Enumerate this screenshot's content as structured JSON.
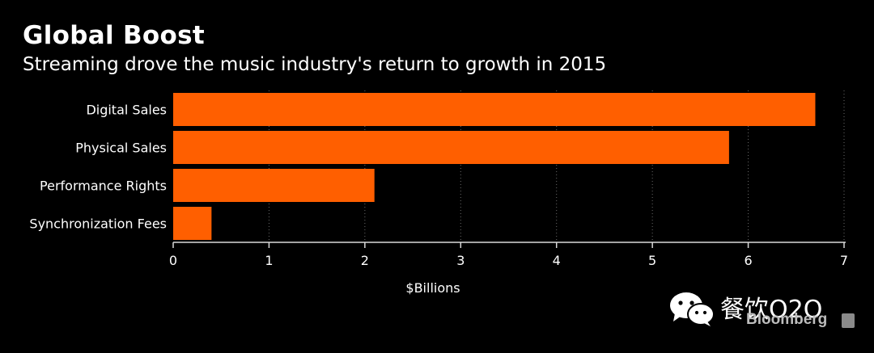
{
  "chart_data": {
    "type": "bar",
    "orientation": "horizontal",
    "title": "Global Boost",
    "subtitle": "Streaming drove the music industry's return to growth in 2015",
    "categories": [
      "Digital Sales",
      "Physical Sales",
      "Performance Rights",
      "Synchronization Fees"
    ],
    "values": [
      6.7,
      5.8,
      2.1,
      0.4
    ],
    "xlabel": "$Billions",
    "ylabel": "",
    "xlim": [
      0,
      7
    ],
    "xticks": [
      "0",
      "1",
      "2",
      "3",
      "4",
      "5",
      "6",
      "7"
    ],
    "grid": true,
    "bar_color": "#ff5f00"
  },
  "watermark": {
    "icon": "wechat-icon",
    "account": "餐饮O2O",
    "brand": "Bloomberg"
  }
}
